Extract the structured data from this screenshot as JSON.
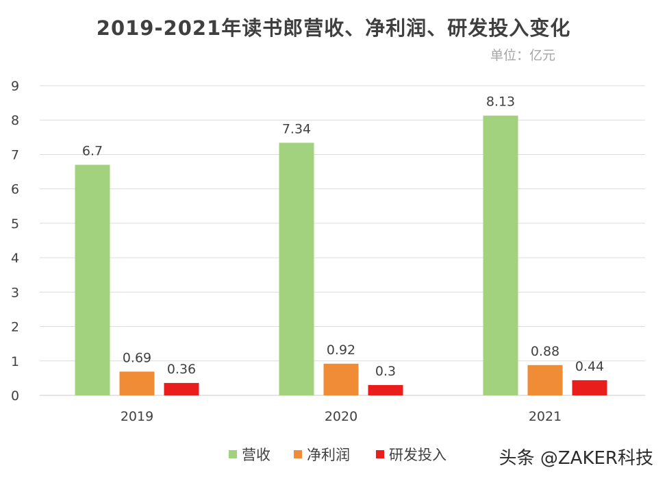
{
  "watermark": "头条 @ZAKER科技",
  "chart_data": {
    "type": "bar",
    "title": "2019-2021年读书郎营收、净利润、研发投入变化",
    "unit_label": "单位：亿元",
    "categories": [
      "2019",
      "2020",
      "2021"
    ],
    "series": [
      {
        "name": "营收",
        "color": "#a3d27f",
        "values": [
          6.7,
          7.34,
          8.13
        ],
        "labels": [
          "6.7",
          "7.34",
          "8.13"
        ]
      },
      {
        "name": "净利润",
        "color": "#f08c36",
        "values": [
          0.69,
          0.92,
          0.88
        ],
        "labels": [
          "0.69",
          "0.92",
          "0.88"
        ]
      },
      {
        "name": "研发投入",
        "color": "#ea1d1d",
        "values": [
          0.36,
          0.3,
          0.44
        ],
        "labels": [
          "0.36",
          "0.3",
          "0.44"
        ]
      }
    ],
    "y_ticks": [
      "0",
      "1",
      "2",
      "3",
      "4",
      "5",
      "6",
      "7",
      "8",
      "9"
    ],
    "ylim": [
      0,
      9
    ],
    "grid": true,
    "legend": "bottom"
  }
}
